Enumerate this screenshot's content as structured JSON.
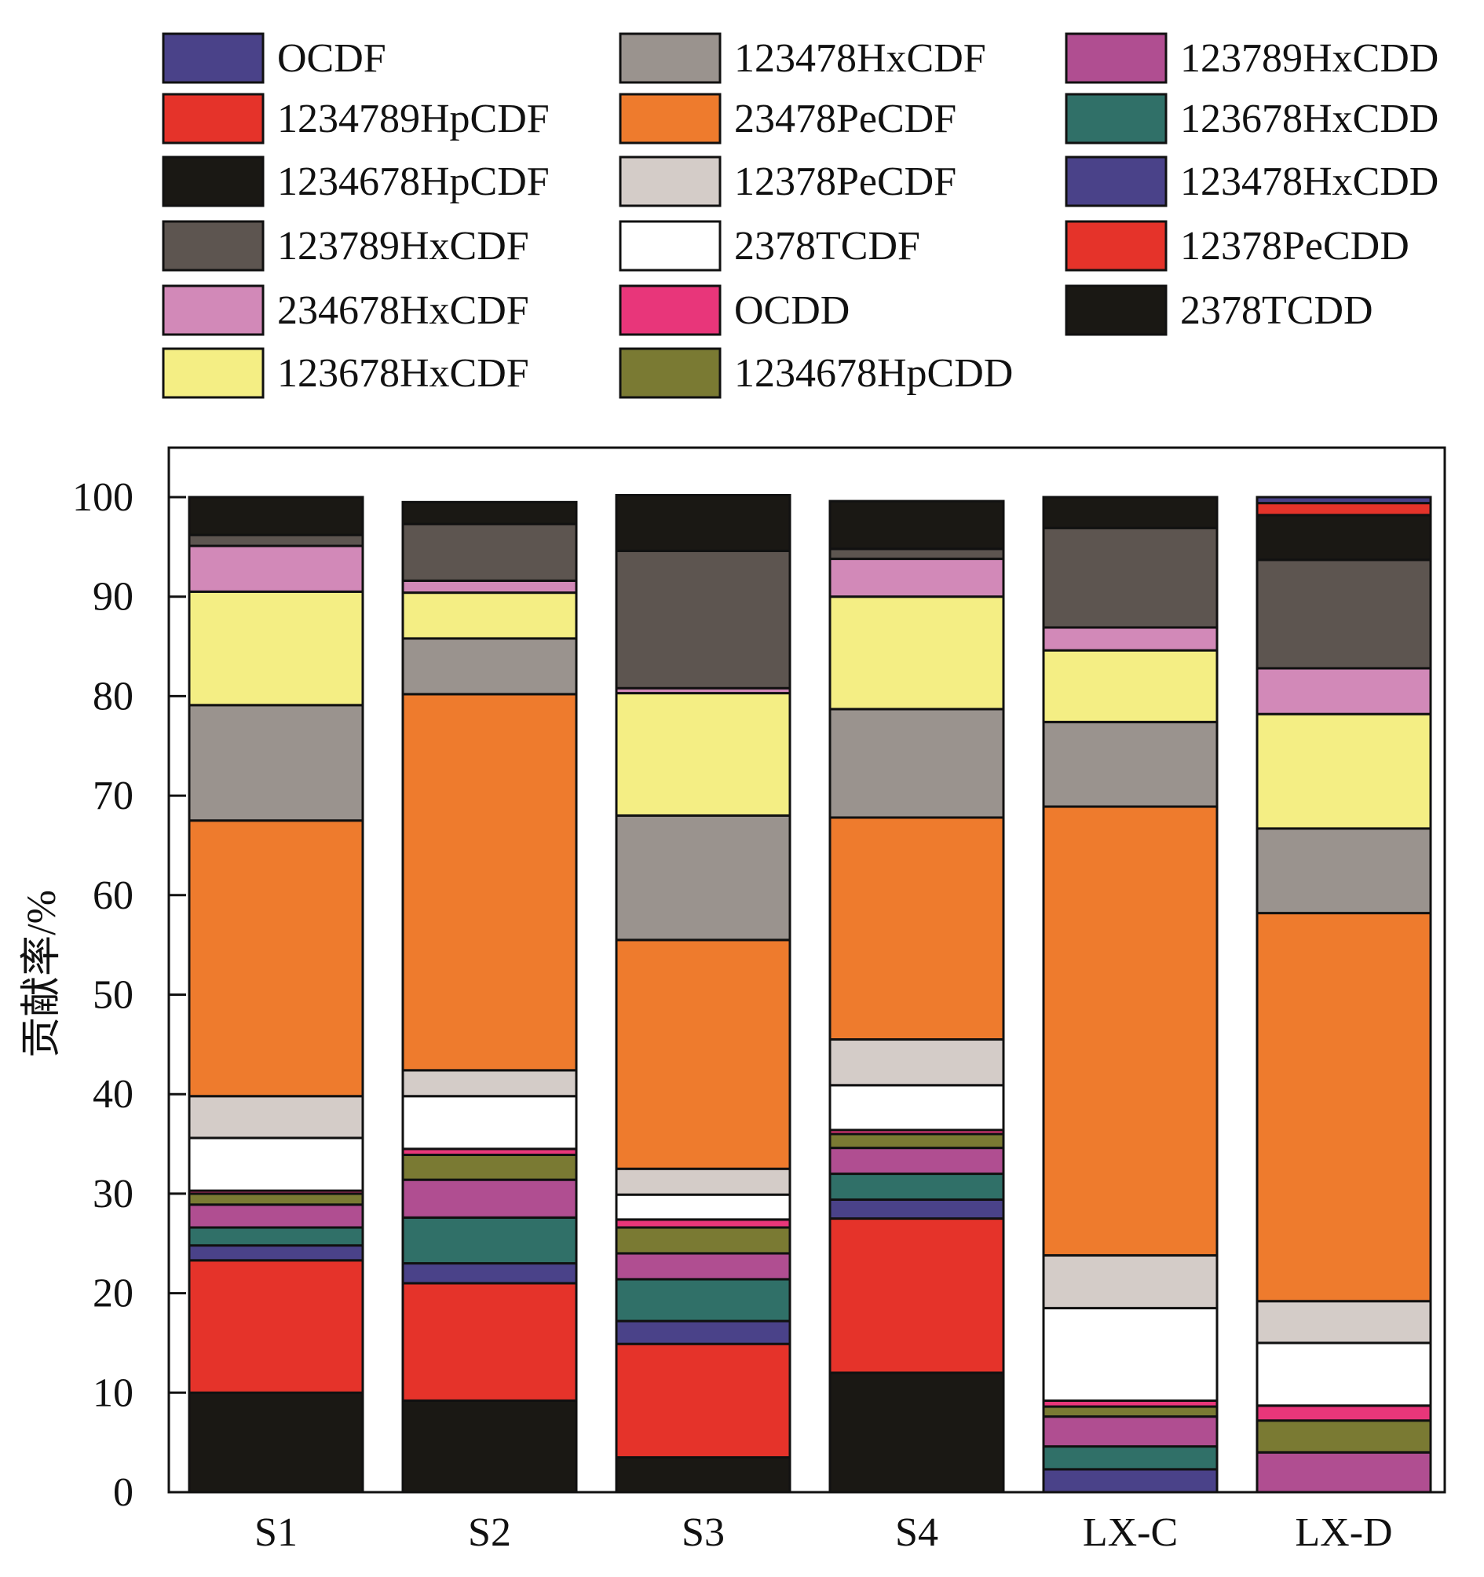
{
  "chart_data": {
    "type": "bar",
    "stacked": true,
    "title": "",
    "xlabel": "",
    "ylabel": "贡献率/%",
    "ylim": [
      0,
      100
    ],
    "yticks": [
      0,
      10,
      20,
      30,
      40,
      50,
      60,
      70,
      80,
      90,
      100
    ],
    "categories": [
      "S1",
      "S2",
      "S3",
      "S4",
      "LX-C",
      "LX-D"
    ],
    "legend_position": "top",
    "series": [
      {
        "name": "2378TCDD",
        "color": "#1a1814",
        "values": [
          10.0,
          9.2,
          3.5,
          12.0,
          0.0,
          0.0
        ]
      },
      {
        "name": "12378PeCDD",
        "color": "#e5332a",
        "values": [
          13.3,
          11.8,
          11.4,
          15.5,
          0.0,
          0.0
        ]
      },
      {
        "name": "123478HxCDD",
        "color": "#4a4289",
        "values": [
          1.5,
          2.0,
          2.3,
          1.9,
          2.3,
          0.0
        ]
      },
      {
        "name": "123678HxCDD",
        "color": "#307068",
        "values": [
          1.8,
          4.6,
          4.2,
          2.6,
          2.3,
          0.0
        ]
      },
      {
        "name": "123789HxCDD",
        "color": "#b04e91",
        "values": [
          2.3,
          3.8,
          2.6,
          2.6,
          3.0,
          4.0
        ]
      },
      {
        "name": "1234678HpCDD",
        "color": "#7a7a33",
        "values": [
          1.1,
          2.5,
          2.6,
          1.4,
          1.0,
          3.2
        ]
      },
      {
        "name": "OCDD",
        "color": "#e8367a",
        "values": [
          0.3,
          0.6,
          0.8,
          0.4,
          0.6,
          1.5
        ]
      },
      {
        "name": "2378TCDF",
        "color": "#ffffff",
        "values": [
          5.3,
          5.3,
          2.5,
          4.5,
          9.3,
          6.3
        ]
      },
      {
        "name": "12378PeCDF",
        "color": "#d4ccc8",
        "values": [
          4.2,
          2.6,
          2.6,
          4.6,
          5.3,
          4.2
        ]
      },
      {
        "name": "23478PeCDF",
        "color": "#ee7b2d",
        "values": [
          27.7,
          37.8,
          23.0,
          22.3,
          45.1,
          39.0
        ]
      },
      {
        "name": "123478HxCDF",
        "color": "#9a938e",
        "values": [
          11.6,
          5.6,
          12.5,
          10.9,
          8.5,
          8.5
        ]
      },
      {
        "name": "123678HxCDF",
        "color": "#f4ee84",
        "values": [
          11.4,
          4.6,
          12.3,
          11.3,
          7.2,
          11.5
        ]
      },
      {
        "name": "234678HxCDF",
        "color": "#d289b8",
        "values": [
          4.6,
          1.2,
          0.5,
          3.8,
          2.3,
          4.6
        ]
      },
      {
        "name": "123789HxCDF",
        "color": "#5d5550",
        "values": [
          1.1,
          5.7,
          13.8,
          1.0,
          10.0,
          10.9
        ]
      },
      {
        "name": "1234678HpCDF",
        "color": "#1a1814",
        "values": [
          3.8,
          2.2,
          5.6,
          4.8,
          3.1,
          4.5
        ]
      },
      {
        "name": "1234789HpCDF",
        "color": "#e5332a",
        "values": [
          0.0,
          0.0,
          0.0,
          0.0,
          0.0,
          1.2
        ]
      },
      {
        "name": "OCDF",
        "color": "#4a4289",
        "values": [
          0.0,
          0.0,
          0.0,
          0.0,
          0.0,
          0.6
        ]
      }
    ],
    "legend_columns": [
      [
        "OCDF",
        "1234789HpCDF",
        "1234678HpCDF",
        "123789HxCDF",
        "234678HxCDF",
        "123678HxCDF"
      ],
      [
        "123478HxCDF",
        "23478PeCDF",
        "12378PeCDF",
        "2378TCDF",
        "OCDD",
        "1234678HpCDD"
      ],
      [
        "123789HxCDD",
        "123678HxCDD",
        "123478HxCDD",
        "12378PeCDD",
        "2378TCDD"
      ]
    ]
  }
}
